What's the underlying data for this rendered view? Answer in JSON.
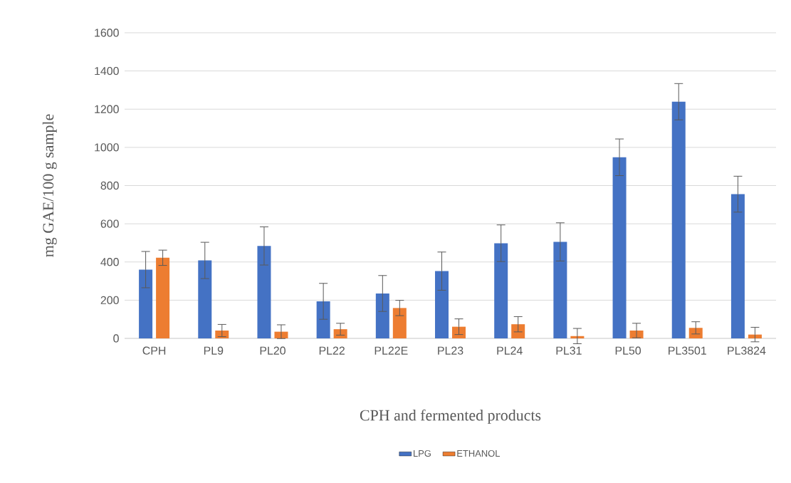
{
  "chart_data": {
    "type": "bar",
    "xlabel": "CPH and fermented products",
    "ylabel": "mg GAE/100 g sample",
    "categories": [
      "CPH",
      "PL9",
      "PL20",
      "PL22",
      "PL22E",
      "PL23",
      "PL24",
      "PL31",
      "PL50",
      "PL3501",
      "PL3824"
    ],
    "series": [
      {
        "name": "LPG",
        "color": "#4472c4",
        "values": [
          360,
          408,
          484,
          194,
          235,
          352,
          498,
          505,
          948,
          1239,
          755
        ],
        "errors": [
          95,
          95,
          100,
          94,
          94,
          100,
          96,
          100,
          96,
          95,
          94
        ]
      },
      {
        "name": "ETHANOL",
        "color": "#ed7d31",
        "values": [
          422,
          41,
          35,
          48,
          159,
          61,
          74,
          12,
          41,
          55,
          20
        ],
        "errors": [
          40,
          32,
          36,
          31,
          40,
          41,
          40,
          40,
          38,
          32,
          38
        ]
      }
    ],
    "ylim": [
      0,
      1600
    ],
    "yticks": [
      0,
      200,
      400,
      600,
      800,
      1000,
      1200,
      1400,
      1600
    ],
    "grid": "y",
    "legend": "bottom"
  }
}
